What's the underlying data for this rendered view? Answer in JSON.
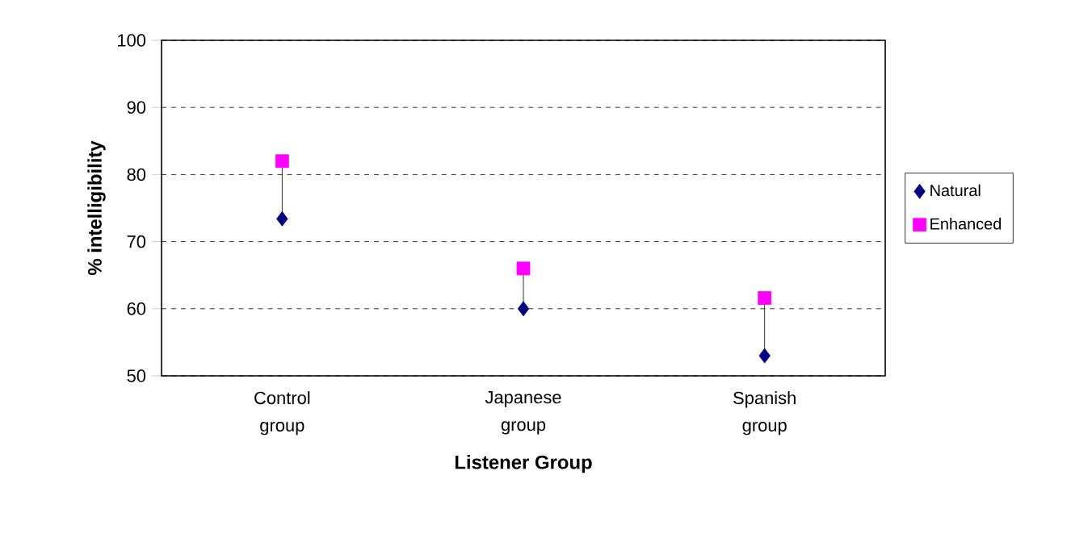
{
  "chart_data": {
    "type": "scatter",
    "xlabel": "Listener Group",
    "ylabel": "% intelligibility",
    "categories": [
      "Control group",
      "Japanese group",
      "Spanish group"
    ],
    "series": [
      {
        "name": "Natural",
        "color": "#000080",
        "marker": "diamond",
        "values": [
          73.4,
          60,
          53
        ]
      },
      {
        "name": "Enhanced",
        "color": "#ff00ff",
        "marker": "square",
        "values": [
          82,
          66,
          61.6
        ]
      }
    ],
    "ylim": [
      50,
      100
    ],
    "yticks": [
      50,
      60,
      70,
      80,
      90,
      100
    ],
    "grid": "y",
    "legend": "right",
    "line_style": "none"
  }
}
